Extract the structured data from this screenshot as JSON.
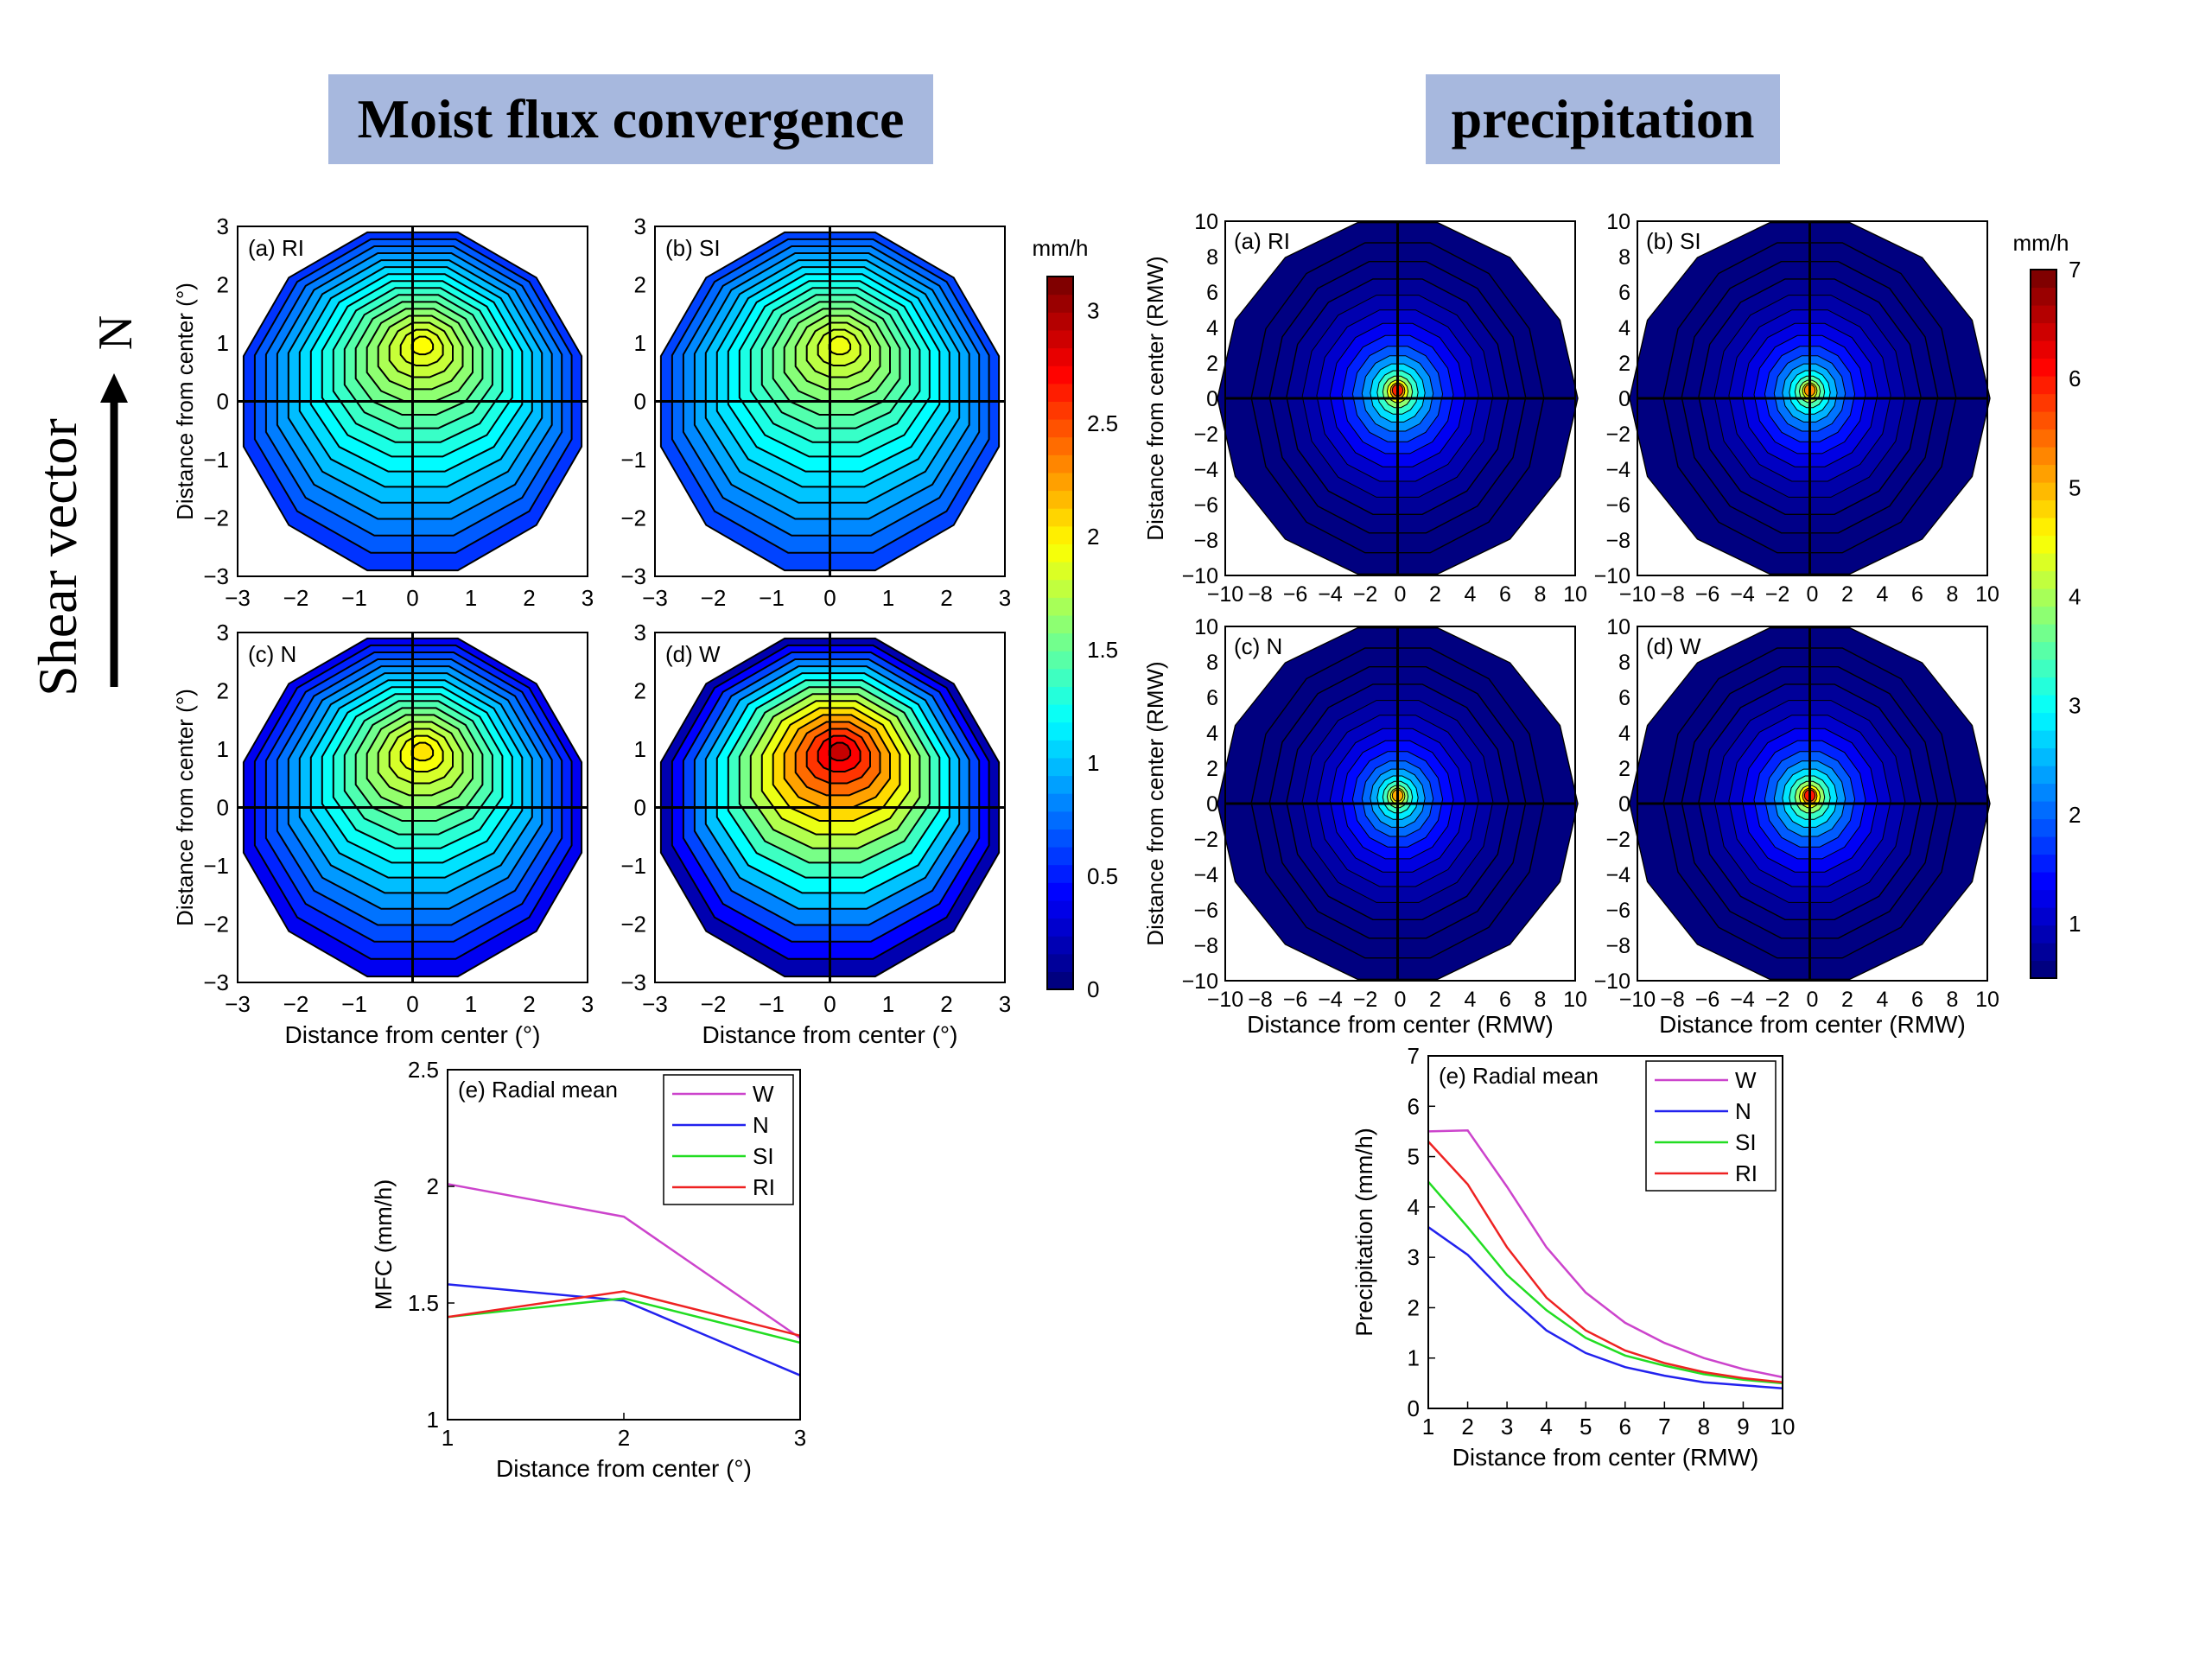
{
  "banners": {
    "left": "Moist flux convergence",
    "right": "precipitation"
  },
  "shear": {
    "label": "Shear vector",
    "north": "N"
  },
  "mfc": {
    "colorbar": {
      "unit": "mm/h",
      "min": 0,
      "max": 3.15,
      "ticks": [
        "0",
        "0.5",
        "1",
        "1.5",
        "2",
        "2.5",
        "3"
      ]
    },
    "axis_label_x": "Distance from center (°)",
    "axis_label_y": "Distance from center (°)",
    "range": [
      -3,
      3
    ],
    "ticks": [
      "−3",
      "−2",
      "−1",
      "0",
      "1",
      "2",
      "3"
    ],
    "panels": [
      {
        "label": "(a) RI",
        "peak": 2.05,
        "north_bias": 1.0,
        "south_min": 0.55
      },
      {
        "label": "(b) SI",
        "peak": 2.0,
        "north_bias": 1.0,
        "south_min": 0.6
      },
      {
        "label": "(c) N",
        "peak": 2.15,
        "north_bias": 1.0,
        "south_min": 0.35
      },
      {
        "label": "(d) W",
        "peak": 3.1,
        "north_bias": 1.0,
        "south_min": 0.15
      }
    ]
  },
  "precip": {
    "colorbar": {
      "unit": "mm/h",
      "min": 0.5,
      "max": 7,
      "ticks": [
        "1",
        "2",
        "3",
        "4",
        "5",
        "6",
        "7"
      ]
    },
    "axis_label_x": "Distance from center (RMW)",
    "axis_label_y": "Distance from center (RMW)",
    "range": [
      -10,
      10
    ],
    "ticks": [
      "−10",
      "−8",
      "−6",
      "−4",
      "−2",
      "0",
      "2",
      "4",
      "6",
      "8",
      "10"
    ],
    "panels": [
      {
        "label": "(a) RI",
        "peak": 6.8
      },
      {
        "label": "(b) SI",
        "peak": 6.0
      },
      {
        "label": "(c) N",
        "peak": 5.8
      },
      {
        "label": "(d) W",
        "peak": 6.9
      }
    ]
  },
  "chart_data": [
    {
      "type": "line",
      "title": "(e) Radial mean",
      "xlabel": "Distance from center (°)",
      "ylabel": "MFC (mm/h)",
      "x": [
        1,
        2,
        3
      ],
      "xlim": [
        1,
        3
      ],
      "ylim": [
        1,
        2.5
      ],
      "xticks": [
        "1",
        "2",
        "3"
      ],
      "yticks": [
        "1",
        "1.5",
        "2",
        "2.5"
      ],
      "legend_position": "top-right",
      "series": [
        {
          "name": "W",
          "color": "#cc44cc",
          "values": [
            2.01,
            1.87,
            1.35
          ]
        },
        {
          "name": "N",
          "color": "#2222ee",
          "values": [
            1.58,
            1.51,
            1.19
          ]
        },
        {
          "name": "SI",
          "color": "#22dd22",
          "values": [
            1.44,
            1.52,
            1.33
          ]
        },
        {
          "name": "RI",
          "color": "#ee2222",
          "values": [
            1.44,
            1.55,
            1.36
          ]
        }
      ]
    },
    {
      "type": "line",
      "title": "(e) Radial mean",
      "xlabel": "Distance from center (RMW)",
      "ylabel": "Precipitation (mm/h)",
      "x": [
        1,
        2,
        3,
        4,
        5,
        6,
        7,
        8,
        9,
        10
      ],
      "xlim": [
        1,
        10
      ],
      "ylim": [
        0,
        7
      ],
      "xticks": [
        "1",
        "2",
        "3",
        "4",
        "5",
        "6",
        "7",
        "8",
        "9",
        "10"
      ],
      "yticks": [
        "0",
        "1",
        "2",
        "3",
        "4",
        "5",
        "6",
        "7"
      ],
      "legend_position": "top-right",
      "series": [
        {
          "name": "W",
          "color": "#cc44cc",
          "values": [
            5.5,
            5.52,
            4.4,
            3.2,
            2.3,
            1.7,
            1.3,
            1.0,
            0.78,
            0.62
          ]
        },
        {
          "name": "N",
          "color": "#2222ee",
          "values": [
            3.6,
            3.05,
            2.25,
            1.55,
            1.1,
            0.82,
            0.65,
            0.52,
            0.46,
            0.4
          ]
        },
        {
          "name": "SI",
          "color": "#22dd22",
          "values": [
            4.5,
            3.6,
            2.65,
            1.95,
            1.4,
            1.05,
            0.85,
            0.68,
            0.57,
            0.5
          ]
        },
        {
          "name": "RI",
          "color": "#ee2222",
          "values": [
            5.3,
            4.45,
            3.2,
            2.2,
            1.55,
            1.15,
            0.9,
            0.72,
            0.6,
            0.52
          ]
        }
      ]
    }
  ]
}
